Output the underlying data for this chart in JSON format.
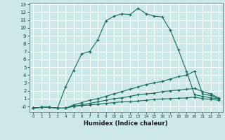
{
  "xlabel": "Humidex (Indice chaleur)",
  "bg_color": "#cce8e8",
  "grid_color": "#b0d8d8",
  "line_color": "#1a6b5a",
  "xlim": [
    -0.5,
    23.5
  ],
  "ylim": [
    -0.7,
    13.2
  ],
  "xticks": [
    0,
    1,
    2,
    3,
    4,
    5,
    6,
    7,
    8,
    9,
    10,
    11,
    12,
    13,
    14,
    15,
    16,
    17,
    18,
    19,
    20,
    21,
    22,
    23
  ],
  "yticks": [
    0,
    1,
    2,
    3,
    4,
    5,
    6,
    7,
    8,
    9,
    10,
    11,
    12,
    13
  ],
  "ytick_labels": [
    "-0",
    "1",
    "2",
    "3",
    "4",
    "5",
    "6",
    "7",
    "8",
    "9",
    "10",
    "11",
    "12",
    "13"
  ],
  "x": [
    0,
    1,
    2,
    3,
    4,
    5,
    6,
    7,
    8,
    9,
    10,
    11,
    12,
    13,
    14,
    15,
    16,
    17,
    18,
    19,
    20,
    21,
    22,
    23
  ],
  "s1": [
    -0.2,
    -0.1,
    -0.1,
    -0.2,
    2.5,
    4.6,
    6.7,
    7.0,
    8.5,
    10.9,
    11.5,
    11.8,
    11.7,
    12.5,
    11.8,
    11.5,
    11.4,
    9.7,
    7.2,
    4.5,
    1.5,
    1.3,
    1.1,
    1.0
  ],
  "s2": [
    -0.2,
    -0.1,
    -0.1,
    -0.2,
    -0.2,
    0.2,
    0.5,
    0.8,
    1.0,
    1.3,
    1.6,
    1.9,
    2.2,
    2.5,
    2.8,
    3.0,
    3.2,
    3.5,
    3.8,
    4.0,
    4.5,
    1.6,
    1.4,
    1.0
  ],
  "s3": [
    -0.2,
    -0.1,
    -0.1,
    -0.2,
    -0.2,
    0.05,
    0.2,
    0.4,
    0.6,
    0.8,
    1.0,
    1.1,
    1.3,
    1.5,
    1.6,
    1.7,
    1.9,
    2.0,
    2.1,
    2.2,
    2.3,
    1.9,
    1.6,
    1.1
  ],
  "s4": [
    -0.2,
    -0.1,
    -0.1,
    -0.2,
    -0.2,
    0.0,
    0.1,
    0.2,
    0.3,
    0.4,
    0.5,
    0.6,
    0.6,
    0.7,
    0.8,
    0.9,
    0.95,
    1.0,
    1.05,
    1.1,
    1.2,
    1.0,
    0.9,
    0.8
  ]
}
